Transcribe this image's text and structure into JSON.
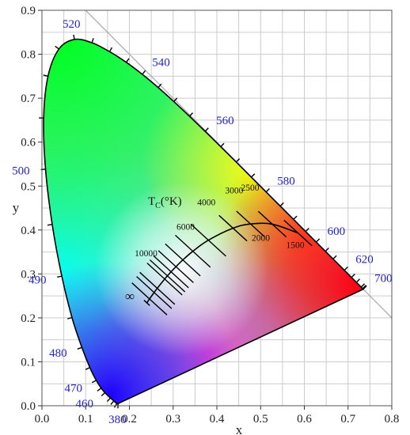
{
  "chart_data": {
    "type": "scatter",
    "xlabel": "x",
    "ylabel": "y",
    "xlim": [
      0,
      0.8
    ],
    "ylim": [
      0,
      0.9
    ],
    "x_ticks": [
      "0.0",
      "0.1",
      "0.2",
      "0.3",
      "0.4",
      "0.5",
      "0.6",
      "0.7",
      "0.8"
    ],
    "y_ticks": [
      "0.0",
      "0.1",
      "0.2",
      "0.3",
      "0.4",
      "0.5",
      "0.6",
      "0.7",
      "0.8",
      "0.9"
    ],
    "grid": true,
    "locus_color": "#2222cc",
    "spectral_locus": [
      {
        "wl": 380,
        "x": 0.1741,
        "y": 0.005,
        "label": "380"
      },
      {
        "wl": 420,
        "x": 0.1714,
        "y": 0.0051
      },
      {
        "wl": 440,
        "x": 0.1644,
        "y": 0.0109
      },
      {
        "wl": 450,
        "x": 0.1566,
        "y": 0.0177
      },
      {
        "wl": 460,
        "x": 0.144,
        "y": 0.0297,
        "label": "460"
      },
      {
        "wl": 465,
        "x": 0.1355,
        "y": 0.0399
      },
      {
        "wl": 470,
        "x": 0.1241,
        "y": 0.0578,
        "label": "470"
      },
      {
        "wl": 475,
        "x": 0.1096,
        "y": 0.0868
      },
      {
        "wl": 480,
        "x": 0.0913,
        "y": 0.1327,
        "label": "480"
      },
      {
        "wl": 485,
        "x": 0.0687,
        "y": 0.2007
      },
      {
        "wl": 490,
        "x": 0.0454,
        "y": 0.295,
        "label": "490"
      },
      {
        "wl": 495,
        "x": 0.0235,
        "y": 0.4127
      },
      {
        "wl": 500,
        "x": 0.0082,
        "y": 0.5384,
        "label": "500"
      },
      {
        "wl": 505,
        "x": 0.0039,
        "y": 0.6548
      },
      {
        "wl": 510,
        "x": 0.0139,
        "y": 0.7502
      },
      {
        "wl": 515,
        "x": 0.0389,
        "y": 0.812
      },
      {
        "wl": 520,
        "x": 0.0743,
        "y": 0.8338,
        "label": "520"
      },
      {
        "wl": 525,
        "x": 0.1142,
        "y": 0.8262
      },
      {
        "wl": 530,
        "x": 0.1547,
        "y": 0.8059
      },
      {
        "wl": 535,
        "x": 0.1929,
        "y": 0.7816
      },
      {
        "wl": 540,
        "x": 0.2296,
        "y": 0.7543,
        "label": "540"
      },
      {
        "wl": 545,
        "x": 0.2658,
        "y": 0.7243
      },
      {
        "wl": 550,
        "x": 0.3016,
        "y": 0.6923
      },
      {
        "wl": 555,
        "x": 0.3373,
        "y": 0.6589
      },
      {
        "wl": 560,
        "x": 0.3731,
        "y": 0.6245,
        "label": "560"
      },
      {
        "wl": 565,
        "x": 0.4087,
        "y": 0.5896
      },
      {
        "wl": 570,
        "x": 0.4441,
        "y": 0.5547
      },
      {
        "wl": 575,
        "x": 0.4788,
        "y": 0.5202
      },
      {
        "wl": 580,
        "x": 0.5125,
        "y": 0.4866,
        "label": "580"
      },
      {
        "wl": 585,
        "x": 0.5448,
        "y": 0.4544
      },
      {
        "wl": 590,
        "x": 0.5752,
        "y": 0.4242
      },
      {
        "wl": 595,
        "x": 0.6029,
        "y": 0.3965
      },
      {
        "wl": 600,
        "x": 0.627,
        "y": 0.3725,
        "label": "600"
      },
      {
        "wl": 605,
        "x": 0.6482,
        "y": 0.3514
      },
      {
        "wl": 610,
        "x": 0.6658,
        "y": 0.334
      },
      {
        "wl": 620,
        "x": 0.6915,
        "y": 0.3083,
        "label": "620"
      },
      {
        "wl": 630,
        "x": 0.7079,
        "y": 0.292
      },
      {
        "wl": 640,
        "x": 0.719,
        "y": 0.2809
      },
      {
        "wl": 660,
        "x": 0.73,
        "y": 0.27
      },
      {
        "wl": 680,
        "x": 0.7334,
        "y": 0.2666
      },
      {
        "wl": 700,
        "x": 0.7347,
        "y": 0.2653,
        "label": "700"
      }
    ],
    "planckian_locus": {
      "title_main": "T",
      "title_sub": "C",
      "title_rest": "(°K)",
      "infinity_label": "∞",
      "infinity": {
        "x": 0.2399,
        "y": 0.2341
      },
      "points": [
        {
          "t": 1500,
          "x": 0.5855,
          "y": 0.3932,
          "label": "1500"
        },
        {
          "t": 2000,
          "x": 0.5267,
          "y": 0.4133,
          "label": "2000"
        },
        {
          "t": 2500,
          "x": 0.477,
          "y": 0.4137,
          "label": "2500"
        },
        {
          "t": 3000,
          "x": 0.4369,
          "y": 0.4041,
          "label": "3000"
        },
        {
          "t": 4000,
          "x": 0.3805,
          "y": 0.3768,
          "label": "4000"
        },
        {
          "t": 5000,
          "x": 0.3451,
          "y": 0.3516
        },
        {
          "t": 6000,
          "x": 0.3221,
          "y": 0.3318,
          "label": "6000"
        },
        {
          "t": 7000,
          "x": 0.3064,
          "y": 0.3166
        },
        {
          "t": 8000,
          "x": 0.2952,
          "y": 0.3048
        },
        {
          "t": 9000,
          "x": 0.2869,
          "y": 0.2956
        },
        {
          "t": 10000,
          "x": 0.2807,
          "y": 0.2884,
          "label": "10000"
        },
        {
          "t": 15000,
          "x": 0.2637,
          "y": 0.2673
        },
        {
          "t": 20000,
          "x": 0.2565,
          "y": 0.2577
        },
        {
          "t": 50000,
          "x": 0.2459,
          "y": 0.2431
        }
      ]
    }
  }
}
